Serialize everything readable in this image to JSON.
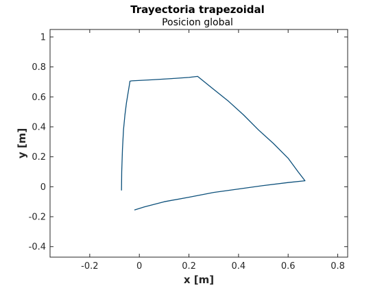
{
  "chart_data": {
    "type": "line",
    "title": "Trayectoria trapezoidal",
    "subtitle": "Posicion global",
    "xlabel": "x [m]",
    "ylabel": "y [m]",
    "xlim": [
      -0.36,
      0.84
    ],
    "ylim": [
      -0.47,
      1.05
    ],
    "xticks": [
      -0.2,
      0,
      0.2,
      0.4,
      0.6,
      0.8
    ],
    "xtick_labels": [
      "-0.2",
      "0",
      "0.2",
      "0.4",
      "0.6",
      "0.8"
    ],
    "yticks": [
      -0.4,
      -0.2,
      0,
      0.2,
      0.4,
      0.6,
      0.8,
      1
    ],
    "ytick_labels": [
      "-0.4",
      "-0.2",
      "0",
      "0.2",
      "0.4",
      "0.6",
      "0.8",
      "1"
    ],
    "grid": false,
    "line_color": "#0b4f7a",
    "series": [
      {
        "x": [
          -0.072,
          -0.071,
          -0.068,
          -0.064,
          -0.058,
          -0.052,
          -0.045,
          -0.04,
          -0.038,
          -0.03,
          0.05,
          0.13,
          0.2,
          0.235,
          0.3,
          0.36,
          0.42,
          0.48,
          0.54,
          0.6,
          0.64,
          0.668,
          0.6,
          0.5,
          0.4,
          0.3,
          0.2,
          0.1,
          0.02,
          -0.02
        ],
        "y": [
          -0.025,
          0.1,
          0.25,
          0.38,
          0.48,
          0.56,
          0.63,
          0.68,
          0.705,
          0.707,
          0.714,
          0.722,
          0.73,
          0.737,
          0.65,
          0.57,
          0.48,
          0.38,
          0.29,
          0.19,
          0.1,
          0.04,
          0.028,
          0.008,
          -0.015,
          -0.038,
          -0.07,
          -0.1,
          -0.135,
          -0.155
        ]
      }
    ]
  }
}
